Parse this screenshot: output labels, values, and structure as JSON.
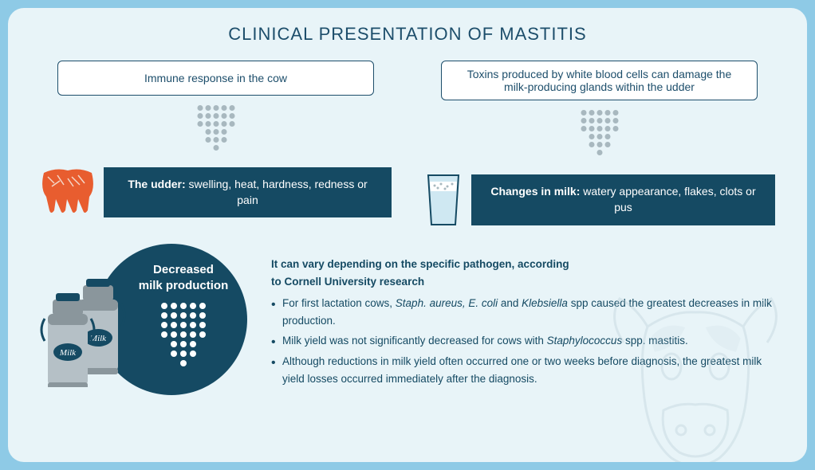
{
  "title": "CLINICAL PRESENTATION OF MASTITIS",
  "colors": {
    "bg_outer": "#8ecae6",
    "bg_inner": "#e8f4f8",
    "primary": "#154a63",
    "title": "#1d4e6b",
    "udder": "#e85d2f",
    "dots": "#a8b8bf",
    "milk_can_body": "#b5c0c6",
    "milk_can_dark": "#8a969c",
    "milk_glass": "#cfe8f2",
    "cow_line": "#b8cdd6"
  },
  "left": {
    "cause": "Immune response in the cow",
    "symptom_label": "The udder:",
    "symptom_text": " swelling, heat, hardness, redness or pain"
  },
  "right": {
    "cause": "Toxins produced by white blood cells can damage the milk-producing glands within the udder",
    "symptom_label": "Changes in milk:",
    "symptom_text": " watery appearance, flakes, clots or pus"
  },
  "decreased": {
    "line1": "Decreased",
    "line2": "milk production"
  },
  "research": {
    "intro_1": "It can vary depending on the specific pathogen, according",
    "intro_2": "to Cornell University research",
    "bullet1_a": "For first lactation cows, ",
    "bullet1_b": "Staph. aureus, E. coli",
    "bullet1_c": " and ",
    "bullet1_d": "Klebsiella",
    "bullet1_e": " spp caused the greatest decreases in milk production.",
    "bullet2_a": "Milk yield was not significantly decreased for cows with ",
    "bullet2_b": "Staphylococcus",
    "bullet2_c": " spp. mastitis.",
    "bullet3": "Although reductions in milk yield often occurred one or two weeks before diagnosis, the greatest milk yield losses occurred immediately after the diagnosis."
  },
  "dot_arrow": {
    "grid_cols": 5,
    "grid_rows": 3,
    "stem_cols": 3,
    "stem_rows": 2,
    "tip_cols": 1,
    "dot_radius": 3.5,
    "dot_spacing": 10
  },
  "white_dot_arrow": {
    "grid_cols": 5,
    "grid_rows": 4,
    "stem_cols": 3,
    "stem_rows": 2,
    "tip_cols": 1,
    "dot_radius": 4,
    "dot_spacing": 12
  }
}
